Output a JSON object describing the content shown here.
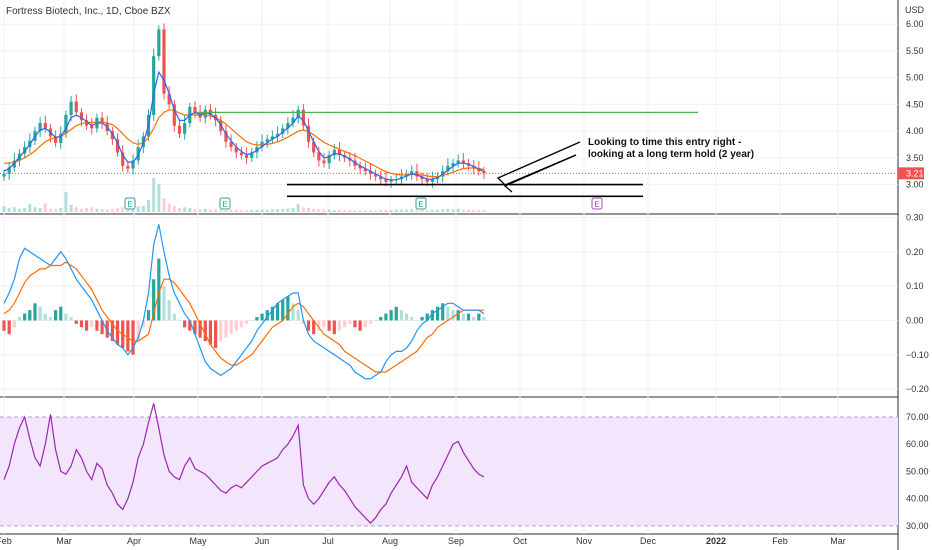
{
  "header": {
    "symbol_title": "Fortress Biotech, Inc., 1D, Cboe BZX",
    "currency": "USD"
  },
  "colors": {
    "up": "#26a69a",
    "down": "#ef5350",
    "up_light": "#b2dfdb",
    "down_light": "#ffcdd2",
    "ma_fast": "#2962ff",
    "ma_slow": "#ff6d00",
    "macd": "#2196f3",
    "signal": "#ff6d00",
    "rsi": "#9c27b0",
    "rsi_band": "#f3e5fc",
    "resistance": "#4caf50",
    "grid": "#eef0f4",
    "text": "#333333",
    "earnings": "#26a69a",
    "earnings_future": "#ab47bc",
    "last_price_bg": "#ef5350"
  },
  "chart_data": [
    {
      "type": "candlestick",
      "panel": "price",
      "y_ticks": [
        "3.00",
        "3.50",
        "4.00",
        "4.50",
        "5.00",
        "5.50",
        "6.00"
      ],
      "ylim": [
        2.45,
        6.45
      ],
      "last_price": "3.21",
      "x_ticks": [
        "Feb",
        "Mar",
        "Apr",
        "May",
        "Jun",
        "Jul",
        "Aug",
        "Sep",
        "Oct",
        "Nov",
        "Dec",
        "2022",
        "Feb",
        "Mar"
      ],
      "closes": [
        3.2,
        3.32,
        3.45,
        3.58,
        3.7,
        3.82,
        4.0,
        4.15,
        4.05,
        3.9,
        3.78,
        3.95,
        4.3,
        4.55,
        4.35,
        4.2,
        4.1,
        4.05,
        4.25,
        4.15,
        4.0,
        3.85,
        3.6,
        3.35,
        3.3,
        3.45,
        3.7,
        3.9,
        4.3,
        5.4,
        5.9,
        4.7,
        4.5,
        4.1,
        3.95,
        4.15,
        4.45,
        4.35,
        4.25,
        4.4,
        4.3,
        4.2,
        4.0,
        3.8,
        3.7,
        3.6,
        3.55,
        3.5,
        3.6,
        3.7,
        3.8,
        3.85,
        3.9,
        3.95,
        4.05,
        4.15,
        4.25,
        4.4,
        4.1,
        3.8,
        3.6,
        3.45,
        3.4,
        3.55,
        3.65,
        3.55,
        3.5,
        3.45,
        3.35,
        3.3,
        3.25,
        3.2,
        3.15,
        3.1,
        3.05,
        3.08,
        3.1,
        3.15,
        3.2,
        3.25,
        3.15,
        3.1,
        3.05,
        3.1,
        3.15,
        3.25,
        3.35,
        3.4,
        3.45,
        3.4,
        3.35,
        3.3,
        3.25,
        3.21
      ],
      "ma_fast": [
        3.25,
        3.3,
        3.4,
        3.52,
        3.62,
        3.75,
        3.9,
        4.02,
        4.05,
        3.98,
        3.88,
        3.9,
        4.05,
        4.25,
        4.3,
        4.25,
        4.18,
        4.1,
        4.15,
        4.15,
        4.08,
        3.95,
        3.78,
        3.55,
        3.42,
        3.42,
        3.55,
        3.78,
        4.1,
        4.7,
        5.1,
        4.95,
        4.7,
        4.4,
        4.2,
        4.2,
        4.3,
        4.35,
        4.3,
        4.35,
        4.32,
        4.25,
        4.12,
        3.95,
        3.82,
        3.7,
        3.62,
        3.56,
        3.58,
        3.64,
        3.72,
        3.78,
        3.85,
        3.9,
        3.98,
        4.06,
        4.15,
        4.28,
        4.2,
        4.0,
        3.8,
        3.62,
        3.5,
        3.52,
        3.58,
        3.57,
        3.53,
        3.48,
        3.41,
        3.35,
        3.3,
        3.25,
        3.2,
        3.15,
        3.1,
        3.09,
        3.09,
        3.12,
        3.16,
        3.2,
        3.18,
        3.14,
        3.1,
        3.1,
        3.13,
        3.19,
        3.27,
        3.34,
        3.4,
        3.4,
        3.38,
        3.34,
        3.29,
        3.24
      ],
      "ma_slow": [
        3.4,
        3.4,
        3.42,
        3.45,
        3.5,
        3.56,
        3.63,
        3.72,
        3.8,
        3.85,
        3.88,
        3.9,
        3.96,
        4.03,
        4.1,
        4.14,
        4.16,
        4.16,
        4.17,
        4.17,
        4.15,
        4.12,
        4.05,
        3.95,
        3.85,
        3.78,
        3.75,
        3.78,
        3.88,
        4.05,
        4.25,
        4.35,
        4.4,
        4.38,
        4.34,
        4.3,
        4.3,
        4.3,
        4.3,
        4.3,
        4.28,
        4.25,
        4.2,
        4.13,
        4.05,
        3.96,
        3.88,
        3.8,
        3.76,
        3.74,
        3.74,
        3.75,
        3.77,
        3.8,
        3.84,
        3.89,
        3.94,
        4.0,
        4.02,
        3.99,
        3.93,
        3.86,
        3.79,
        3.74,
        3.7,
        3.66,
        3.62,
        3.58,
        3.54,
        3.49,
        3.44,
        3.39,
        3.34,
        3.29,
        3.24,
        3.21,
        3.19,
        3.18,
        3.18,
        3.19,
        3.19,
        3.18,
        3.16,
        3.15,
        3.15,
        3.17,
        3.2,
        3.23,
        3.27,
        3.3,
        3.31,
        3.31,
        3.3,
        3.28
      ],
      "volume": [
        0.15,
        0.1,
        0.12,
        0.08,
        0.1,
        0.2,
        0.12,
        0.1,
        0.22,
        0.08,
        0.07,
        0.1,
        0.5,
        0.18,
        0.12,
        0.08,
        0.1,
        0.12,
        0.08,
        0.07,
        0.06,
        0.08,
        0.1,
        0.12,
        0.08,
        0.1,
        0.14,
        0.15,
        0.3,
        0.85,
        0.7,
        0.35,
        0.2,
        0.15,
        0.1,
        0.12,
        0.1,
        0.08,
        0.07,
        0.08,
        0.06,
        0.07,
        0.06,
        0.05,
        0.06,
        0.05,
        0.05,
        0.04,
        0.05,
        0.05,
        0.06,
        0.06,
        0.07,
        0.07,
        0.08,
        0.09,
        0.1,
        0.2,
        0.12,
        0.1,
        0.08,
        0.07,
        0.06,
        0.06,
        0.05,
        0.05,
        0.05,
        0.04,
        0.04,
        0.05,
        0.04,
        0.04,
        0.04,
        0.05,
        0.05,
        0.05,
        0.06,
        0.06,
        0.06,
        0.07,
        0.06,
        0.05,
        0.05,
        0.05,
        0.06,
        0.07,
        0.08,
        0.07,
        0.08,
        0.06,
        0.06,
        0.05,
        0.05,
        0.05
      ],
      "resistance_price": 4.35,
      "support_prices": [
        3.0,
        2.78
      ],
      "earnings_markers": [
        {
          "label": "E",
          "future": false
        },
        {
          "label": "E",
          "future": false
        },
        {
          "label": "E",
          "future": false
        },
        {
          "label": "E",
          "future": true
        }
      ],
      "annotation": [
        "Looking to time this entry right -",
        "looking at a long term hold (2 year)"
      ]
    },
    {
      "type": "macd",
      "panel": "macd",
      "y_ticks": [
        "0.30",
        "0.20",
        "0.10",
        "0.00",
        "−0.10",
        "−0.20"
      ],
      "ylim": [
        -0.22,
        0.31
      ],
      "histogram": [
        -0.03,
        -0.04,
        -0.02,
        0.01,
        0.02,
        0.03,
        0.05,
        0.04,
        0.02,
        0.01,
        0.03,
        0.04,
        0.02,
        0.01,
        -0.01,
        -0.02,
        -0.03,
        -0.02,
        -0.03,
        -0.04,
        -0.05,
        -0.06,
        -0.07,
        -0.08,
        -0.09,
        -0.1,
        -0.06,
        -0.02,
        0.03,
        0.12,
        0.18,
        0.1,
        0.06,
        0.02,
        0.0,
        -0.02,
        -0.03,
        -0.04,
        -0.05,
        -0.06,
        -0.07,
        -0.08,
        -0.06,
        -0.05,
        -0.04,
        -0.03,
        -0.02,
        -0.01,
        0.0,
        0.01,
        0.02,
        0.03,
        0.04,
        0.05,
        0.06,
        0.07,
        0.05,
        0.03,
        -0.01,
        -0.03,
        -0.04,
        -0.03,
        -0.02,
        -0.03,
        -0.04,
        -0.03,
        -0.02,
        -0.01,
        -0.02,
        -0.03,
        -0.02,
        -0.01,
        0.0,
        0.01,
        0.02,
        0.03,
        0.04,
        0.03,
        0.02,
        0.01,
        0.0,
        0.01,
        0.02,
        0.03,
        0.04,
        0.05,
        0.04,
        0.03,
        0.03,
        0.02,
        0.02,
        0.01,
        0.02,
        0.01
      ],
      "macd_line": [
        0.05,
        0.08,
        0.12,
        0.18,
        0.21,
        0.2,
        0.19,
        0.18,
        0.17,
        0.16,
        0.18,
        0.2,
        0.18,
        0.15,
        0.12,
        0.1,
        0.08,
        0.06,
        0.03,
        0.0,
        -0.03,
        -0.05,
        -0.07,
        -0.08,
        -0.1,
        -0.08,
        -0.05,
        0.0,
        0.08,
        0.22,
        0.28,
        0.2,
        0.13,
        0.08,
        0.05,
        0.02,
        0.0,
        -0.04,
        -0.08,
        -0.12,
        -0.14,
        -0.15,
        -0.16,
        -0.15,
        -0.14,
        -0.12,
        -0.1,
        -0.08,
        -0.06,
        -0.03,
        -0.01,
        0.01,
        0.03,
        0.05,
        0.06,
        0.07,
        0.08,
        0.08,
        0.0,
        -0.04,
        -0.06,
        -0.07,
        -0.08,
        -0.09,
        -0.1,
        -0.11,
        -0.12,
        -0.13,
        -0.15,
        -0.16,
        -0.17,
        -0.17,
        -0.16,
        -0.15,
        -0.12,
        -0.1,
        -0.09,
        -0.09,
        -0.08,
        -0.06,
        -0.03,
        -0.01,
        0.0,
        0.02,
        0.03,
        0.04,
        0.05,
        0.05,
        0.04,
        0.03,
        0.03,
        0.03,
        0.03,
        0.02
      ],
      "signal_line": [
        0.02,
        0.03,
        0.05,
        0.08,
        0.11,
        0.13,
        0.14,
        0.15,
        0.15,
        0.16,
        0.16,
        0.16,
        0.17,
        0.16,
        0.15,
        0.13,
        0.11,
        0.09,
        0.06,
        0.03,
        0.01,
        -0.01,
        -0.03,
        -0.04,
        -0.05,
        -0.06,
        -0.06,
        -0.05,
        -0.04,
        0.02,
        0.08,
        0.12,
        0.12,
        0.11,
        0.09,
        0.07,
        0.05,
        0.02,
        -0.01,
        -0.04,
        -0.07,
        -0.09,
        -0.11,
        -0.12,
        -0.13,
        -0.13,
        -0.12,
        -0.11,
        -0.1,
        -0.08,
        -0.06,
        -0.04,
        -0.02,
        -0.01,
        0.0,
        0.02,
        0.04,
        0.05,
        0.04,
        0.02,
        0.0,
        -0.02,
        -0.04,
        -0.05,
        -0.06,
        -0.07,
        -0.09,
        -0.1,
        -0.11,
        -0.12,
        -0.13,
        -0.14,
        -0.15,
        -0.15,
        -0.15,
        -0.14,
        -0.13,
        -0.12,
        -0.11,
        -0.1,
        -0.09,
        -0.07,
        -0.05,
        -0.04,
        -0.02,
        -0.01,
        0.0,
        0.01,
        0.02,
        0.03,
        0.03,
        0.03,
        0.03,
        0.03
      ]
    },
    {
      "type": "line",
      "panel": "rsi",
      "y_ticks": [
        "70.00",
        "60.00",
        "50.00",
        "40.00",
        "30.00"
      ],
      "ylim": [
        27,
        77
      ],
      "band": [
        30,
        70
      ],
      "values": [
        47,
        52,
        60,
        66,
        70,
        62,
        55,
        52,
        60,
        71,
        58,
        50,
        49,
        52,
        58,
        55,
        50,
        47,
        53,
        51,
        45,
        42,
        38,
        36,
        40,
        46,
        55,
        60,
        68,
        75,
        66,
        56,
        50,
        48,
        47,
        52,
        55,
        51,
        50,
        49,
        47,
        45,
        43,
        42,
        44,
        45,
        44,
        46,
        48,
        50,
        52,
        53,
        54,
        55,
        58,
        60,
        63,
        67,
        45,
        40,
        38,
        40,
        43,
        46,
        48,
        45,
        43,
        40,
        37,
        35,
        33,
        31,
        33,
        36,
        38,
        42,
        45,
        48,
        52,
        46,
        44,
        42,
        40,
        45,
        48,
        52,
        56,
        60,
        61,
        57,
        54,
        51,
        49,
        48
      ]
    }
  ]
}
